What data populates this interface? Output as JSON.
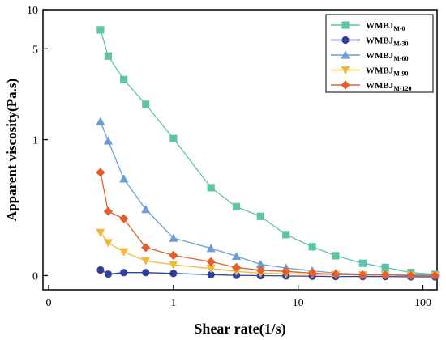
{
  "chart_data": {
    "type": "line",
    "title": "",
    "xlabel": "Shear rate(1/s)",
    "ylabel": "Apparent viscosity(Pa.s)",
    "x_scale": "log",
    "y_scale": "log",
    "xlim": [
      0.09,
      130
    ],
    "ylim": [
      0.07,
      10
    ],
    "x_ticks": [
      {
        "value": 0.1,
        "label": "0"
      },
      {
        "value": 1,
        "label": "1"
      },
      {
        "value": 10,
        "label": "10"
      },
      {
        "value": 100,
        "label": "100"
      }
    ],
    "y_ticks": [
      {
        "value": 0.09,
        "label": "0"
      },
      {
        "value": 1,
        "label": "1"
      },
      {
        "value": 5,
        "label": "5"
      },
      {
        "value": 10,
        "label": "10"
      }
    ],
    "grid": false,
    "legend_position": "top-right",
    "series": [
      {
        "name": "WMBJ",
        "subscript": "M-0",
        "color": "#5ec4a8",
        "marker": "square",
        "points": [
          [
            0.26,
            7.0
          ],
          [
            0.3,
            4.4
          ],
          [
            0.4,
            2.9
          ],
          [
            0.6,
            1.87
          ],
          [
            1.0,
            1.02
          ],
          [
            2.0,
            0.427
          ],
          [
            3.2,
            0.305
          ],
          [
            5.0,
            0.257
          ],
          [
            8.0,
            0.186
          ],
          [
            13.0,
            0.15
          ],
          [
            20.0,
            0.128
          ],
          [
            33.0,
            0.112
          ],
          [
            50.0,
            0.104
          ],
          [
            80.0,
            0.095
          ],
          [
            125.0,
            0.092
          ]
        ]
      },
      {
        "name": "WMBJ",
        "subscript": "M-30",
        "color": "#2e3f9e",
        "marker": "circle",
        "points": [
          [
            0.26,
            0.0995
          ],
          [
            0.3,
            0.0925
          ],
          [
            0.4,
            0.095
          ],
          [
            0.6,
            0.095
          ],
          [
            1.0,
            0.0935
          ],
          [
            2.0,
            0.0915
          ],
          [
            3.2,
            0.0905
          ],
          [
            5.0,
            0.09
          ],
          [
            8.0,
            0.0895
          ],
          [
            13.0,
            0.089
          ],
          [
            20.0,
            0.0885
          ],
          [
            33.0,
            0.0885
          ],
          [
            50.0,
            0.0885
          ],
          [
            80.0,
            0.088
          ],
          [
            125.0,
            0.088
          ]
        ]
      },
      {
        "name": "WMBJ",
        "subscript": "M-60",
        "color": "#6b9fd4",
        "marker": "triangle-up",
        "points": [
          [
            0.26,
            1.38
          ],
          [
            0.3,
            0.98
          ],
          [
            0.4,
            0.5
          ],
          [
            0.6,
            0.291
          ],
          [
            1.0,
            0.175
          ],
          [
            2.0,
            0.146
          ],
          [
            3.2,
            0.127
          ],
          [
            5.0,
            0.11
          ],
          [
            8.0,
            0.103
          ],
          [
            13.0,
            0.098
          ],
          [
            20.0,
            0.094
          ],
          [
            33.0,
            0.092
          ],
          [
            50.0,
            0.092
          ],
          [
            80.0,
            0.091
          ],
          [
            125.0,
            0.091
          ]
        ]
      },
      {
        "name": "WMBJ",
        "subscript": "M-90",
        "color": "#f0b93e",
        "marker": "triangle-down",
        "points": [
          [
            0.26,
            0.193
          ],
          [
            0.3,
            0.161
          ],
          [
            0.4,
            0.137
          ],
          [
            0.6,
            0.117
          ],
          [
            1.0,
            0.109
          ],
          [
            2.0,
            0.102
          ],
          [
            3.2,
            0.097
          ],
          [
            5.0,
            0.094
          ],
          [
            8.0,
            0.093
          ],
          [
            13.0,
            0.092
          ],
          [
            20.0,
            0.0915
          ],
          [
            33.0,
            0.091
          ],
          [
            50.0,
            0.091
          ],
          [
            80.0,
            0.0905
          ],
          [
            125.0,
            0.09
          ]
        ]
      },
      {
        "name": "WMBJ",
        "subscript": "M-120",
        "color": "#e35e2c",
        "marker": "diamond",
        "points": [
          [
            0.26,
            0.56
          ],
          [
            0.3,
            0.281
          ],
          [
            0.4,
            0.247
          ],
          [
            0.6,
            0.148
          ],
          [
            1.0,
            0.129
          ],
          [
            2.0,
            0.115
          ],
          [
            3.2,
            0.104
          ],
          [
            5.0,
            0.099
          ],
          [
            8.0,
            0.097
          ],
          [
            13.0,
            0.094
          ],
          [
            20.0,
            0.092
          ],
          [
            33.0,
            0.091
          ],
          [
            50.0,
            0.091
          ],
          [
            80.0,
            0.09
          ],
          [
            125.0,
            0.09
          ]
        ]
      }
    ]
  }
}
